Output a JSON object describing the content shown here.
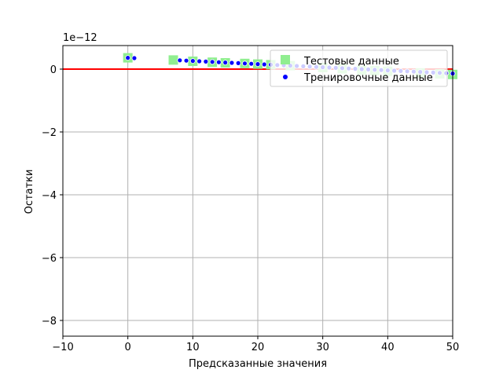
{
  "chart_data": {
    "type": "scatter",
    "xlabel": "Предсказанные значения",
    "ylabel": "Остатки",
    "offset_text": "1e−12",
    "xlim": [
      -10,
      50
    ],
    "ylim": [
      -8.5,
      0.75
    ],
    "xticks": [
      -10,
      0,
      10,
      20,
      30,
      40,
      50
    ],
    "xtick_labels": [
      "−10",
      "0",
      "10",
      "20",
      "30",
      "40",
      "50"
    ],
    "yticks": [
      -8,
      -6,
      -4,
      -2,
      0
    ],
    "ytick_labels": [
      "−8",
      "−6",
      "−4",
      "−2",
      "0"
    ],
    "grid": true,
    "legend_position": "top-right",
    "hline": {
      "y": 0,
      "color": "#ff0000"
    },
    "series": [
      {
        "name": "Тестовые данные",
        "marker": "square",
        "color": "#90ee90",
        "points": [
          [
            0,
            0.36
          ],
          [
            7,
            0.29
          ],
          [
            10,
            0.25
          ],
          [
            13,
            0.22
          ],
          [
            15,
            0.2
          ],
          [
            18,
            0.18
          ],
          [
            20,
            0.16
          ],
          [
            22,
            0.14
          ],
          [
            25,
            0.11
          ],
          [
            30,
            0.05
          ],
          [
            33,
            0.01
          ],
          [
            36,
            -0.03
          ],
          [
            38,
            -0.05
          ],
          [
            40,
            -0.07
          ],
          [
            45,
            -0.12
          ],
          [
            48,
            -0.15
          ],
          [
            50,
            -0.17
          ]
        ]
      },
      {
        "name": "Тренировочные данные",
        "marker": "circle",
        "color": "#0000ff",
        "points": [
          [
            0,
            0.36
          ],
          [
            1,
            0.35
          ],
          [
            8,
            0.28
          ],
          [
            9,
            0.27
          ],
          [
            10,
            0.26
          ],
          [
            11,
            0.25
          ],
          [
            12,
            0.24
          ],
          [
            13,
            0.23
          ],
          [
            14,
            0.22
          ],
          [
            15,
            0.21
          ],
          [
            16,
            0.2
          ],
          [
            17,
            0.19
          ],
          [
            18,
            0.18
          ],
          [
            19,
            0.17
          ],
          [
            20,
            0.16
          ],
          [
            21,
            0.15
          ],
          [
            22,
            0.14
          ],
          [
            23,
            0.13
          ],
          [
            24,
            0.12
          ],
          [
            25,
            0.11
          ],
          [
            26,
            0.1
          ],
          [
            27,
            0.09
          ],
          [
            28,
            0.08
          ],
          [
            29,
            0.07
          ],
          [
            30,
            0.06
          ],
          [
            31,
            0.05
          ],
          [
            32,
            0.04
          ],
          [
            33,
            0.03
          ],
          [
            34,
            0.02
          ],
          [
            35,
            0.01
          ],
          [
            36,
            0.0
          ],
          [
            37,
            -0.01
          ],
          [
            38,
            -0.02
          ],
          [
            39,
            -0.03
          ],
          [
            40,
            -0.04
          ],
          [
            41,
            -0.05
          ],
          [
            42,
            -0.06
          ],
          [
            43,
            -0.07
          ],
          [
            44,
            -0.08
          ],
          [
            45,
            -0.09
          ],
          [
            46,
            -0.1
          ],
          [
            47,
            -0.11
          ],
          [
            48,
            -0.12
          ],
          [
            49,
            -0.13
          ],
          [
            50,
            -0.14
          ]
        ]
      }
    ]
  }
}
